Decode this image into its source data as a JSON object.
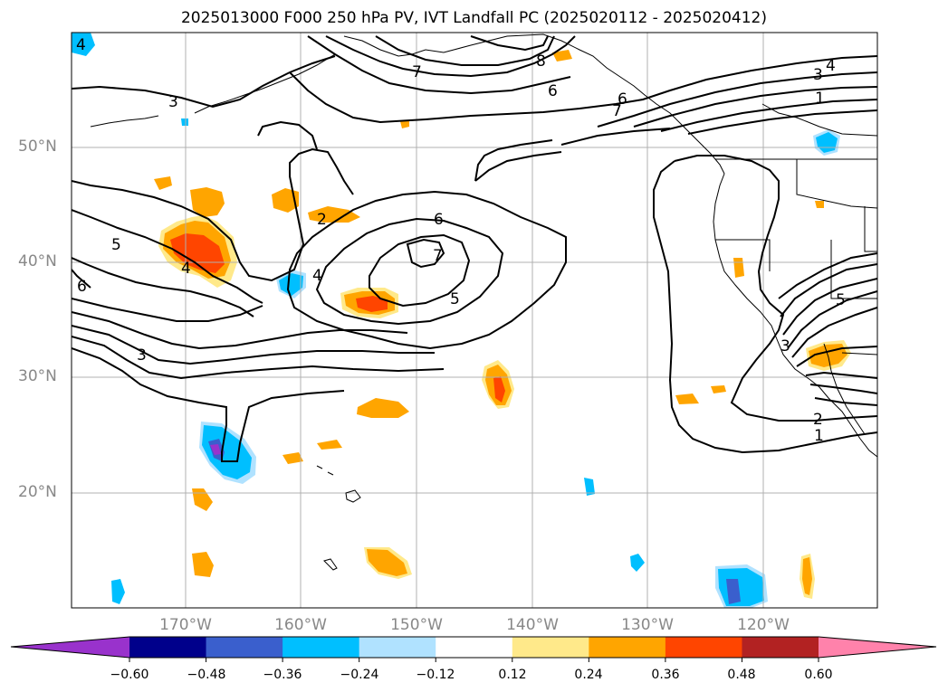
{
  "title": "2025013000 F000 250 hPa PV, IVT Landfall PC (2025020112 - 2025020412)",
  "lat_labels": [
    "50°N",
    "40°N",
    "30°N",
    "20°N"
  ],
  "lon_labels": [
    "170°W",
    "160°W",
    "150°W",
    "140°W",
    "130°W",
    "120°W"
  ],
  "colorbar": {
    "ticks": [
      "−0.60",
      "−0.48",
      "−0.36",
      "−0.24",
      "−0.12",
      "0.12",
      "0.24",
      "0.36",
      "0.48",
      "0.60"
    ],
    "colors": [
      "#9932cc",
      "#00008b",
      "#3a5fcd",
      "#00bfff",
      "#b0e2ff",
      "#ffffff",
      "#ffe98a",
      "#ffa500",
      "#ff4500",
      "#b22222",
      "#ff82ab"
    ]
  },
  "contour_labels": [
    "4",
    "3",
    "7",
    "8",
    "6",
    "7",
    "6",
    "3",
    "4",
    "1",
    "5",
    "6",
    "2",
    "4",
    "6",
    "7",
    "4",
    "5",
    "3",
    "5",
    "3",
    "2",
    "1"
  ],
  "colors": {
    "grid": "#b0b0b0",
    "contour": "#000000",
    "coast": "#000000"
  }
}
